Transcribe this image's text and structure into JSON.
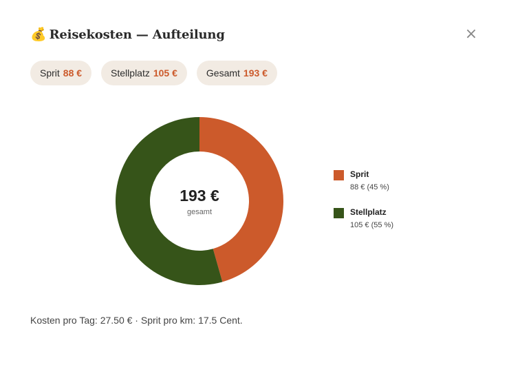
{
  "dialog": {
    "title_icon": "money-bag-icon",
    "title_icon_glyph": "💰",
    "title": "Reisekosten — Aufteilung",
    "close_label": "×"
  },
  "chips": [
    {
      "label": "Sprit",
      "value": "88 €"
    },
    {
      "label": "Stellplatz",
      "value": "105 €"
    },
    {
      "label": "Gesamt",
      "value": "193 €"
    }
  ],
  "donut": {
    "center_value": "193 €",
    "center_label": "gesamt"
  },
  "legend": [
    {
      "name": "Sprit",
      "detail": "88 € (45 %)"
    },
    {
      "name": "Stellplatz",
      "detail": "105 € (55 %)"
    }
  ],
  "footer": {
    "text": "Kosten pro Tag: 27.50 € · Sprit pro km: 17.5 Cent."
  },
  "colors": {
    "sprit": "#cc5a2b",
    "stellplatz": "#365419",
    "accent": "#cc5a2b",
    "chip_bg": "#f2ebe3"
  },
  "chart_data": {
    "type": "pie",
    "categories": [
      "Sprit",
      "Stellplatz"
    ],
    "values": [
      88,
      105
    ],
    "percentages": [
      45,
      55
    ],
    "total": 193,
    "unit": "€",
    "colors": [
      "#cc5a2b",
      "#365419"
    ],
    "legend_position": "right"
  }
}
